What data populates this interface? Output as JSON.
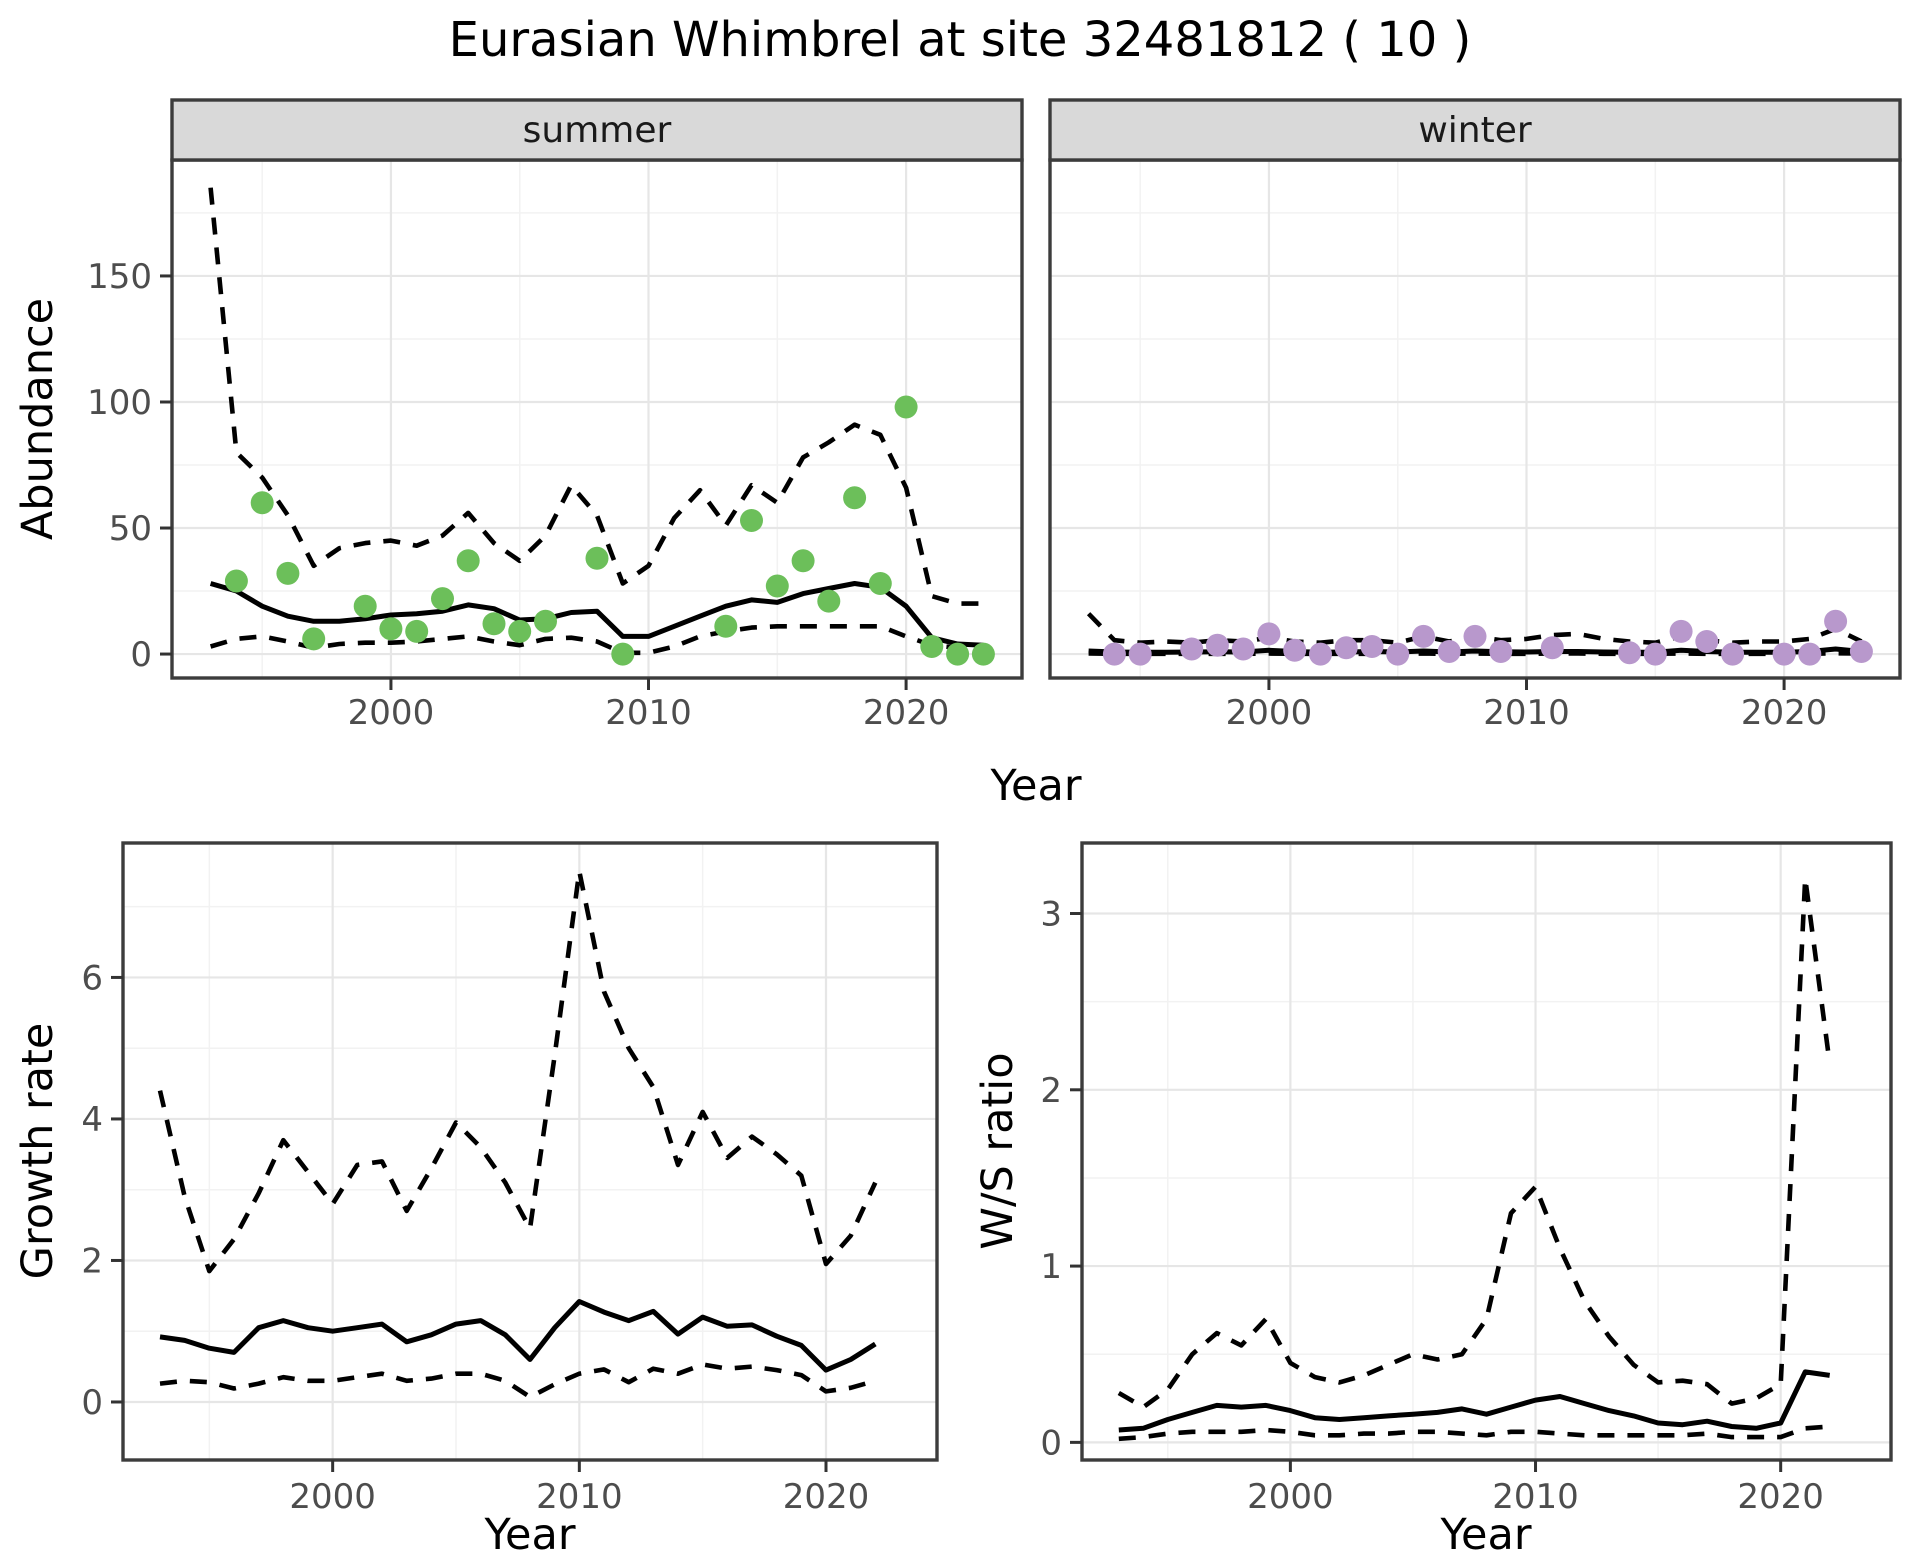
{
  "title": "Eurasian Whimbrel at site 32481812 ( 10 )",
  "labels": {
    "top_x_title": "Year"
  },
  "colors": {
    "summer_dot": "#6cbf5a",
    "winter_dot": "#b898cc",
    "line": "#000000",
    "strip_bg": "#d9d9d9",
    "grid_major": "#e6e6e6",
    "grid_minor": "#f2f2f2",
    "panel_border": "#3c3c3c",
    "tick_label": "#4d4d4d"
  },
  "chart_data": [
    {
      "id": "abundance-summer",
      "type": "line+scatter",
      "facet_label": "summer",
      "x_title": null,
      "y_title": "Abundance",
      "x_ticks": [
        2000,
        2010,
        2020
      ],
      "y_ticks": [
        0,
        50,
        100,
        150
      ],
      "x_minor_ticks": [
        1995,
        2005,
        2015
      ],
      "y_minor_ticks": [
        25,
        75,
        125,
        175
      ],
      "x_range": [
        1991.5,
        2024.5
      ],
      "y_range": [
        -9.5,
        196
      ],
      "grid": true,
      "legend": "none",
      "years": [
        1993,
        1994,
        1995,
        1996,
        1997,
        1998,
        1999,
        2000,
        2001,
        2002,
        2003,
        2004,
        2005,
        2006,
        2007,
        2008,
        2009,
        2010,
        2011,
        2012,
        2013,
        2014,
        2015,
        2016,
        2017,
        2018,
        2019,
        2020,
        2021,
        2022,
        2023
      ],
      "series": [
        {
          "name": "median_fit",
          "style": "solid",
          "values": [
            28,
            25,
            19,
            15,
            13,
            13,
            14,
            15.5,
            16,
            17,
            19.5,
            18,
            13.5,
            14,
            16.5,
            17,
            7,
            7,
            11,
            15,
            19,
            21.5,
            20.5,
            24,
            26,
            28,
            26.5,
            19,
            6.5,
            4,
            3.5
          ]
        },
        {
          "name": "upper_ci",
          "style": "dashed",
          "values": [
            185,
            80,
            70,
            55,
            35,
            42,
            44,
            45,
            43,
            47,
            56,
            44,
            37,
            47,
            67,
            55,
            28,
            35,
            54,
            65,
            51,
            67,
            60,
            78,
            84,
            91,
            87,
            66,
            23,
            20,
            20
          ]
        },
        {
          "name": "lower_ci",
          "style": "dashed",
          "values": [
            3,
            6,
            7,
            5,
            2.5,
            4,
            4.5,
            4.5,
            5,
            6,
            7,
            5,
            3.5,
            6,
            6.5,
            5,
            0.5,
            0.5,
            3,
            7,
            9,
            10.5,
            11,
            11,
            11,
            11,
            11,
            7,
            3.5,
            2.5,
            2.5
          ]
        }
      ],
      "points": {
        "name": "observed_counts",
        "color_key": "summer_dot",
        "data": [
          [
            1994,
            29
          ],
          [
            1995,
            60
          ],
          [
            1996,
            32
          ],
          [
            1997,
            6
          ],
          [
            1999,
            19
          ],
          [
            2000,
            10
          ],
          [
            2001,
            9
          ],
          [
            2002,
            22
          ],
          [
            2003,
            37
          ],
          [
            2004,
            12
          ],
          [
            2005,
            9
          ],
          [
            2006,
            13
          ],
          [
            2008,
            38
          ],
          [
            2009,
            0
          ],
          [
            2013,
            11
          ],
          [
            2014,
            53
          ],
          [
            2015,
            27
          ],
          [
            2016,
            37
          ],
          [
            2017,
            21
          ],
          [
            2018,
            62
          ],
          [
            2019,
            28
          ],
          [
            2020,
            98
          ],
          [
            2021,
            3
          ],
          [
            2022,
            0
          ],
          [
            2023,
            0
          ]
        ]
      }
    },
    {
      "id": "abundance-winter",
      "type": "line+scatter",
      "facet_label": "winter",
      "x_title": null,
      "y_title": null,
      "x_ticks": [
        2000,
        2010,
        2020
      ],
      "y_ticks": [],
      "x_minor_ticks": [
        1995,
        2005,
        2015
      ],
      "y_minor_ticks": [
        25,
        75,
        125,
        175
      ],
      "y_gridline_values": [
        0,
        50,
        100,
        150
      ],
      "x_range": [
        1991.5,
        2024.5
      ],
      "y_range": [
        -9.5,
        196
      ],
      "grid": true,
      "legend": "none",
      "years": [
        1993,
        1994,
        1995,
        1996,
        1997,
        1998,
        1999,
        2000,
        2001,
        2002,
        2003,
        2004,
        2005,
        2006,
        2007,
        2008,
        2009,
        2010,
        2011,
        2012,
        2013,
        2014,
        2015,
        2016,
        2017,
        2018,
        2019,
        2020,
        2021,
        2022,
        2023
      ],
      "series": [
        {
          "name": "median_fit",
          "style": "solid",
          "values": [
            1.2,
            0.8,
            0.7,
            0.7,
            0.8,
            0.9,
            0.8,
            1.5,
            1,
            0.7,
            0.8,
            1,
            0.8,
            1.2,
            0.8,
            1.2,
            0.9,
            0.8,
            1,
            1,
            0.8,
            0.7,
            0.7,
            1.5,
            1,
            0.7,
            0.7,
            0.7,
            1,
            2,
            1
          ]
        },
        {
          "name": "upper_ci",
          "style": "dashed",
          "values": [
            16,
            5.5,
            4.5,
            5,
            4.5,
            5.5,
            5,
            6.5,
            5,
            4.5,
            5.5,
            5.5,
            4.5,
            7,
            5,
            7,
            5.5,
            6,
            7.5,
            8,
            6,
            5,
            4.5,
            7,
            5.5,
            4.5,
            5,
            5,
            6,
            10,
            5
          ]
        },
        {
          "name": "lower_ci",
          "style": "dashed",
          "values": [
            0.2,
            0.1,
            0.1,
            0.1,
            0.1,
            0.1,
            0.1,
            0.2,
            0.1,
            0.1,
            0.1,
            0.1,
            0.1,
            0.2,
            0.1,
            0.2,
            0.1,
            0.1,
            0.2,
            0.2,
            0.1,
            0.1,
            0.1,
            0.2,
            0.1,
            0.1,
            0.1,
            0.1,
            0.1,
            0.3,
            0.2
          ]
        }
      ],
      "points": {
        "name": "observed_counts",
        "color_key": "winter_dot",
        "data": [
          [
            1994,
            0
          ],
          [
            1995,
            0
          ],
          [
            1997,
            2
          ],
          [
            1998,
            3.5
          ],
          [
            1999,
            2
          ],
          [
            2000,
            8
          ],
          [
            2001,
            1.5
          ],
          [
            2002,
            0
          ],
          [
            2003,
            2.5
          ],
          [
            2004,
            3
          ],
          [
            2005,
            0
          ],
          [
            2006,
            7
          ],
          [
            2007,
            1
          ],
          [
            2008,
            7
          ],
          [
            2009,
            1
          ],
          [
            2011,
            2.5
          ],
          [
            2014,
            0.5
          ],
          [
            2015,
            0
          ],
          [
            2016,
            9
          ],
          [
            2017,
            5
          ],
          [
            2018,
            0
          ],
          [
            2020,
            0
          ],
          [
            2021,
            0
          ],
          [
            2022,
            13
          ],
          [
            2023,
            1
          ]
        ]
      }
    },
    {
      "id": "growth-rate",
      "type": "line",
      "facet_label": null,
      "x_title": "Year",
      "y_title": "Growth rate",
      "x_ticks": [
        2000,
        2010,
        2020
      ],
      "y_ticks": [
        0,
        2,
        4,
        6
      ],
      "x_minor_ticks": [
        1995,
        2005,
        2015
      ],
      "y_minor_ticks": [
        1,
        3,
        5,
        7
      ],
      "x_range": [
        1991.5,
        2024.5
      ],
      "y_range": [
        -0.82,
        7.9
      ],
      "grid": true,
      "legend": "none",
      "years": [
        1993,
        1994,
        1995,
        1996,
        1997,
        1998,
        1999,
        2000,
        2001,
        2002,
        2003,
        2004,
        2005,
        2006,
        2007,
        2008,
        2009,
        2010,
        2011,
        2012,
        2013,
        2014,
        2015,
        2016,
        2017,
        2018,
        2019,
        2020,
        2021,
        2022
      ],
      "series": [
        {
          "name": "median_fit",
          "style": "solid",
          "values": [
            0.92,
            0.87,
            0.76,
            0.7,
            1.05,
            1.15,
            1.05,
            1,
            1.05,
            1.1,
            0.85,
            0.95,
            1.1,
            1.15,
            0.95,
            0.6,
            1.05,
            1.42,
            1.27,
            1.15,
            1.28,
            0.96,
            1.2,
            1.07,
            1.09,
            0.93,
            0.8,
            0.45,
            0.6,
            0.82
          ]
        },
        {
          "name": "upper_ci",
          "style": "dashed",
          "values": [
            4.4,
            2.9,
            1.85,
            2.3,
            2.95,
            3.7,
            3.25,
            2.8,
            3.35,
            3.4,
            2.7,
            3.3,
            3.95,
            3.6,
            3.1,
            2.45,
            4.9,
            7.5,
            5.8,
            5,
            4.45,
            3.35,
            4.1,
            3.45,
            3.75,
            3.5,
            3.2,
            1.95,
            2.35,
            3.1
          ]
        },
        {
          "name": "lower_ci",
          "style": "dashed",
          "values": [
            0.26,
            0.3,
            0.28,
            0.19,
            0.26,
            0.35,
            0.3,
            0.3,
            0.35,
            0.4,
            0.3,
            0.33,
            0.4,
            0.4,
            0.3,
            0.07,
            0.25,
            0.4,
            0.46,
            0.28,
            0.47,
            0.4,
            0.53,
            0.47,
            0.5,
            0.45,
            0.38,
            0.15,
            0.2,
            0.3
          ]
        }
      ],
      "points": null
    },
    {
      "id": "ws-ratio",
      "type": "line",
      "facet_label": null,
      "x_title": "Year",
      "y_title": "W/S ratio",
      "x_ticks": [
        2000,
        2010,
        2020
      ],
      "y_ticks": [
        0,
        1,
        2,
        3
      ],
      "x_minor_ticks": [
        1995,
        2005,
        2015
      ],
      "y_minor_ticks": [
        0.5,
        1.5,
        2.5
      ],
      "x_range": [
        1991.5,
        2024.5
      ],
      "y_range": [
        -0.1,
        3.4
      ],
      "grid": true,
      "legend": "none",
      "years": [
        1993,
        1994,
        1995,
        1996,
        1997,
        1998,
        1999,
        2000,
        2001,
        2002,
        2003,
        2004,
        2005,
        2006,
        2007,
        2008,
        2009,
        2010,
        2011,
        2012,
        2013,
        2014,
        2015,
        2016,
        2017,
        2018,
        2019,
        2020,
        2021,
        2022
      ],
      "series": [
        {
          "name": "median_fit",
          "style": "solid",
          "values": [
            0.07,
            0.08,
            0.13,
            0.17,
            0.21,
            0.2,
            0.21,
            0.18,
            0.14,
            0.13,
            0.14,
            0.15,
            0.16,
            0.17,
            0.19,
            0.16,
            0.2,
            0.24,
            0.26,
            0.22,
            0.18,
            0.15,
            0.11,
            0.1,
            0.12,
            0.09,
            0.08,
            0.11,
            0.4,
            0.38
          ]
        },
        {
          "name": "upper_ci",
          "style": "dashed",
          "values": [
            0.28,
            0.2,
            0.3,
            0.5,
            0.62,
            0.55,
            0.7,
            0.45,
            0.37,
            0.34,
            0.38,
            0.44,
            0.5,
            0.47,
            0.5,
            0.7,
            1.3,
            1.45,
            1.1,
            0.8,
            0.6,
            0.44,
            0.34,
            0.35,
            0.33,
            0.22,
            0.25,
            0.33,
            3.2,
            2.15
          ]
        },
        {
          "name": "lower_ci",
          "style": "dashed",
          "values": [
            0.02,
            0.03,
            0.05,
            0.06,
            0.06,
            0.06,
            0.07,
            0.06,
            0.04,
            0.04,
            0.05,
            0.05,
            0.06,
            0.06,
            0.05,
            0.04,
            0.06,
            0.06,
            0.05,
            0.04,
            0.04,
            0.04,
            0.04,
            0.04,
            0.05,
            0.03,
            0.03,
            0.03,
            0.08,
            0.09
          ]
        }
      ],
      "points": null
    }
  ]
}
